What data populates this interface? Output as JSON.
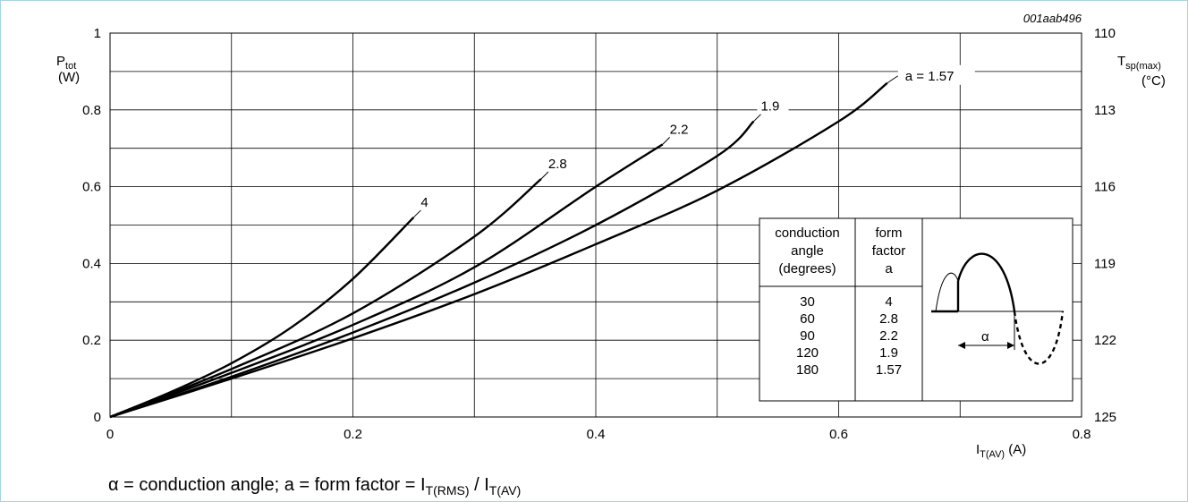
{
  "figure_id": "001aab496",
  "caption": {
    "part1": "α = conduction angle; a = form factor = I",
    "sub1": "T(RMS)",
    "part2": " / I",
    "sub2": "T(AV)"
  },
  "colors": {
    "line": "#000000",
    "grid": "#000000",
    "frame": "#a9d3e0"
  },
  "chart_data": {
    "type": "line",
    "title": "",
    "xlabel": {
      "main": "I",
      "sub": "T(AV)",
      "unit": " (A)"
    },
    "ylabel": {
      "main": "P",
      "sub": "tot",
      "unit": "(W)"
    },
    "y2label": {
      "main": "T",
      "sub": "sp(max)",
      "unit": "(°C)"
    },
    "xlim": [
      0,
      0.8
    ],
    "ylim": [
      0,
      1.0
    ],
    "xticks": [
      "0",
      "0.2",
      "0.4",
      "0.6",
      "0.8"
    ],
    "yticks": [
      "0",
      "0.2",
      "0.4",
      "0.6",
      "0.8",
      "1"
    ],
    "y2ticks": [
      "125",
      "122",
      "119",
      "116",
      "113",
      "110"
    ],
    "grid": true,
    "series": [
      {
        "name": "4",
        "x": [
          0,
          0.05,
          0.1,
          0.15,
          0.2,
          0.25
        ],
        "y": [
          0,
          0.065,
          0.14,
          0.235,
          0.36,
          0.52
        ]
      },
      {
        "name": "2.8",
        "x": [
          0,
          0.1,
          0.2,
          0.3,
          0.355
        ],
        "y": [
          0,
          0.125,
          0.27,
          0.47,
          0.62
        ]
      },
      {
        "name": "2.2",
        "x": [
          0,
          0.1,
          0.2,
          0.3,
          0.4,
          0.455
        ],
        "y": [
          0,
          0.115,
          0.24,
          0.39,
          0.6,
          0.71
        ]
      },
      {
        "name": "1.9",
        "x": [
          0,
          0.1,
          0.2,
          0.3,
          0.4,
          0.5,
          0.53
        ],
        "y": [
          0,
          0.105,
          0.22,
          0.35,
          0.5,
          0.68,
          0.77
        ]
      },
      {
        "name": "a = 1.57",
        "x": [
          0,
          0.1,
          0.2,
          0.3,
          0.4,
          0.5,
          0.6,
          0.64
        ],
        "y": [
          0,
          0.1,
          0.205,
          0.32,
          0.45,
          0.59,
          0.77,
          0.87
        ]
      }
    ],
    "inset_table": {
      "headers": [
        [
          "conduction",
          "angle",
          "(degrees)"
        ],
        [
          "form",
          "factor",
          "a"
        ]
      ],
      "rows": [
        [
          "30",
          "4"
        ],
        [
          "60",
          "2.8"
        ],
        [
          "90",
          "2.2"
        ],
        [
          "120",
          "1.9"
        ],
        [
          "180",
          "1.57"
        ]
      ],
      "alpha_label": "α"
    }
  }
}
